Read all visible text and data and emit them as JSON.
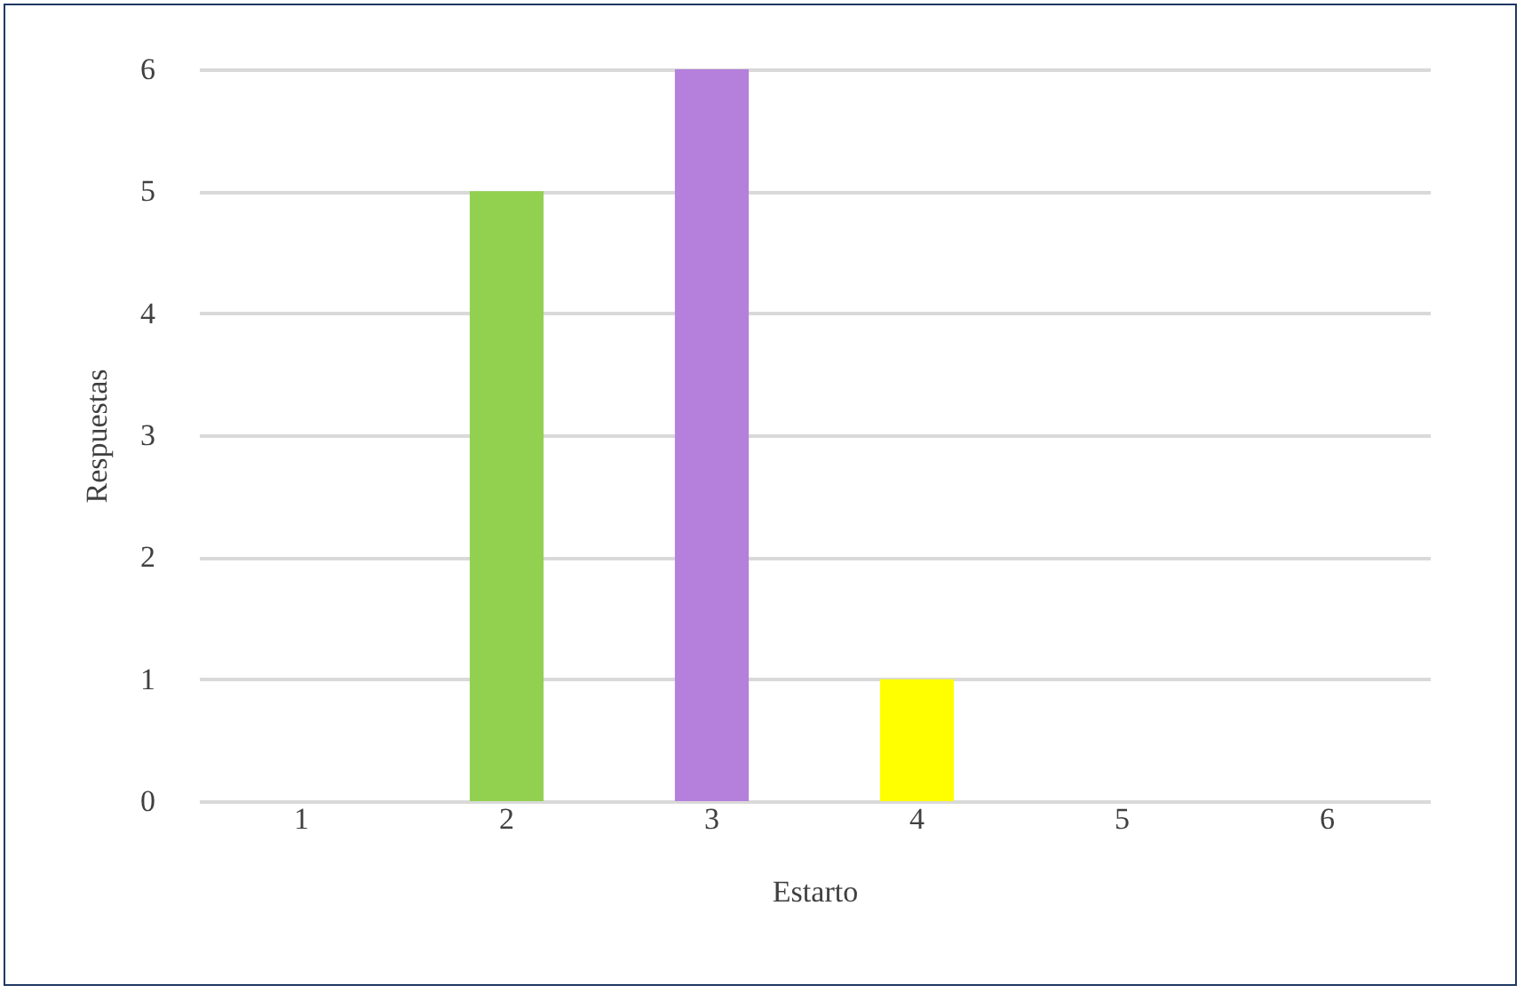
{
  "chart_data": {
    "type": "bar",
    "categories": [
      "1",
      "2",
      "3",
      "4",
      "5",
      "6"
    ],
    "values": [
      0,
      5,
      6,
      1,
      0,
      0
    ],
    "colors": [
      "#c0279a",
      "#92d050",
      "#b480db",
      "#ffff00",
      "#c00000",
      "#bf9000"
    ],
    "xlabel": "Estarto",
    "ylabel": "Respuestas",
    "ylim": [
      0,
      6
    ],
    "yticks": [
      0,
      1,
      2,
      3,
      4,
      5,
      6
    ],
    "grid": "y",
    "legend": false
  }
}
